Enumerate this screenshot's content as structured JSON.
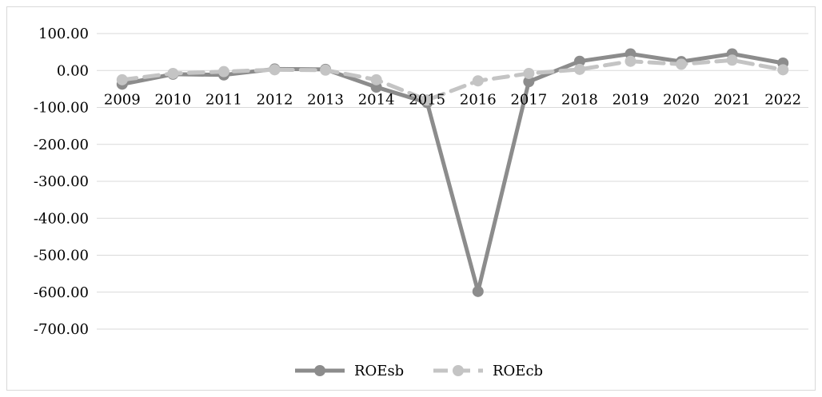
{
  "chart_data": {
    "type": "line",
    "categories": [
      "2009",
      "2010",
      "2011",
      "2012",
      "2013",
      "2014",
      "2015",
      "2016",
      "2017",
      "2018",
      "2019",
      "2020",
      "2021",
      "2022"
    ],
    "series": [
      {
        "name": "ROEsb",
        "values": [
          -37,
          -10,
          -12,
          4,
          3,
          -45,
          -87,
          -598,
          -30,
          25,
          45,
          24,
          45,
          20
        ],
        "color": "#8c8c8c",
        "dash": "solid"
      },
      {
        "name": "ROEcb",
        "values": [
          -25,
          -8,
          -3,
          2,
          1,
          -25,
          -80,
          -28,
          -8,
          3,
          25,
          17,
          28,
          2
        ],
        "color": "#c4c4c4",
        "dash": "dashed"
      }
    ],
    "yticks": [
      "100.00",
      "0.00",
      "-100.00",
      "-200.00",
      "-300.00",
      "-400.00",
      "-500.00",
      "-600.00",
      "-700.00"
    ],
    "ylim": [
      -700,
      100
    ],
    "grid": true,
    "legend_position": "bottom"
  }
}
